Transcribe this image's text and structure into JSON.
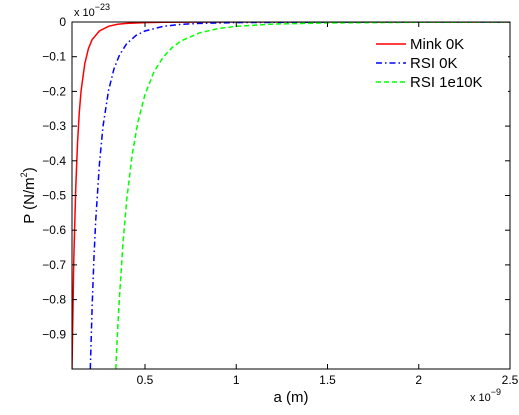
{
  "chart_data": {
    "type": "line",
    "title": "",
    "xlabel": "a (m)",
    "ylabel_main": "P (N/m",
    "ylabel_sup": "2",
    "ylabel_close": ")",
    "x_exponent": {
      "base": "x 10",
      "power": "−9"
    },
    "y_exponent": {
      "base": "x 10",
      "power": "−23"
    },
    "xlim": [
      0.1,
      2.5
    ],
    "ylim": [
      -1.0,
      0.0
    ],
    "x_ticks": [
      {
        "value": 0.5,
        "label": "0.5"
      },
      {
        "value": 1.0,
        "label": "1"
      },
      {
        "value": 1.5,
        "label": "1.5"
      },
      {
        "value": 2.0,
        "label": "2"
      },
      {
        "value": 2.5,
        "label": "2.5"
      }
    ],
    "y_ticks": [
      {
        "value": 0.0,
        "label": "0"
      },
      {
        "value": -0.1,
        "label": "−0.1"
      },
      {
        "value": -0.2,
        "label": "−0.2"
      },
      {
        "value": -0.3,
        "label": "−0.3"
      },
      {
        "value": -0.4,
        "label": "−0.4"
      },
      {
        "value": -0.5,
        "label": "−0.5"
      },
      {
        "value": -0.6,
        "label": "−0.6"
      },
      {
        "value": -0.7,
        "label": "−0.7"
      },
      {
        "value": -0.8,
        "label": "−0.8"
      },
      {
        "value": -0.9,
        "label": "−0.9"
      }
    ],
    "grid": false,
    "legend_position": "top-right",
    "series": [
      {
        "name": "Mink 0K",
        "color": "#ff0000",
        "dash": "solid",
        "x": [
          0.1,
          0.11,
          0.12,
          0.13,
          0.14,
          0.15,
          0.17,
          0.19,
          0.21,
          0.25,
          0.3,
          0.35,
          0.4,
          0.5,
          0.6,
          0.8,
          1.0,
          1.5,
          2.0,
          2.5
        ],
        "y": [
          -1.0,
          -0.683,
          -0.482,
          -0.35,
          -0.26,
          -0.198,
          -0.12,
          -0.077,
          -0.051,
          -0.026,
          -0.0123,
          -0.0067,
          -0.0039,
          -0.0016,
          -0.00077,
          -0.00024,
          -0.0001,
          -2e-05,
          -6e-06,
          -3e-06
        ]
      },
      {
        "name": "RSI 0K",
        "color": "#0000ff",
        "dash": "dashdot",
        "x": [
          0.2,
          0.21,
          0.22,
          0.23,
          0.25,
          0.27,
          0.3,
          0.33,
          0.36,
          0.4,
          0.45,
          0.5,
          0.6,
          0.7,
          0.8,
          1.0,
          1.5,
          2.0,
          2.5
        ],
        "y": [
          -1.0,
          -0.823,
          -0.683,
          -0.572,
          -0.41,
          -0.301,
          -0.198,
          -0.135,
          -0.095,
          -0.062,
          -0.039,
          -0.026,
          -0.0123,
          -0.0067,
          -0.0039,
          -0.0016,
          -0.0003,
          -0.0001,
          -4e-05
        ]
      },
      {
        "name": "RSI 1e10K",
        "color": "#00ff00",
        "dash": "dashed",
        "x": [
          0.34,
          0.35,
          0.36,
          0.38,
          0.4,
          0.43,
          0.46,
          0.5,
          0.55,
          0.6,
          0.65,
          0.7,
          0.8,
          0.9,
          1.0,
          1.2,
          1.5,
          2.0,
          2.5
        ],
        "y": [
          -1.0,
          -0.889,
          -0.792,
          -0.633,
          -0.51,
          -0.382,
          -0.291,
          -0.209,
          -0.143,
          -0.101,
          -0.073,
          -0.054,
          -0.031,
          -0.019,
          -0.0125,
          -0.006,
          -0.0025,
          -0.0008,
          -0.0003
        ]
      }
    ]
  }
}
